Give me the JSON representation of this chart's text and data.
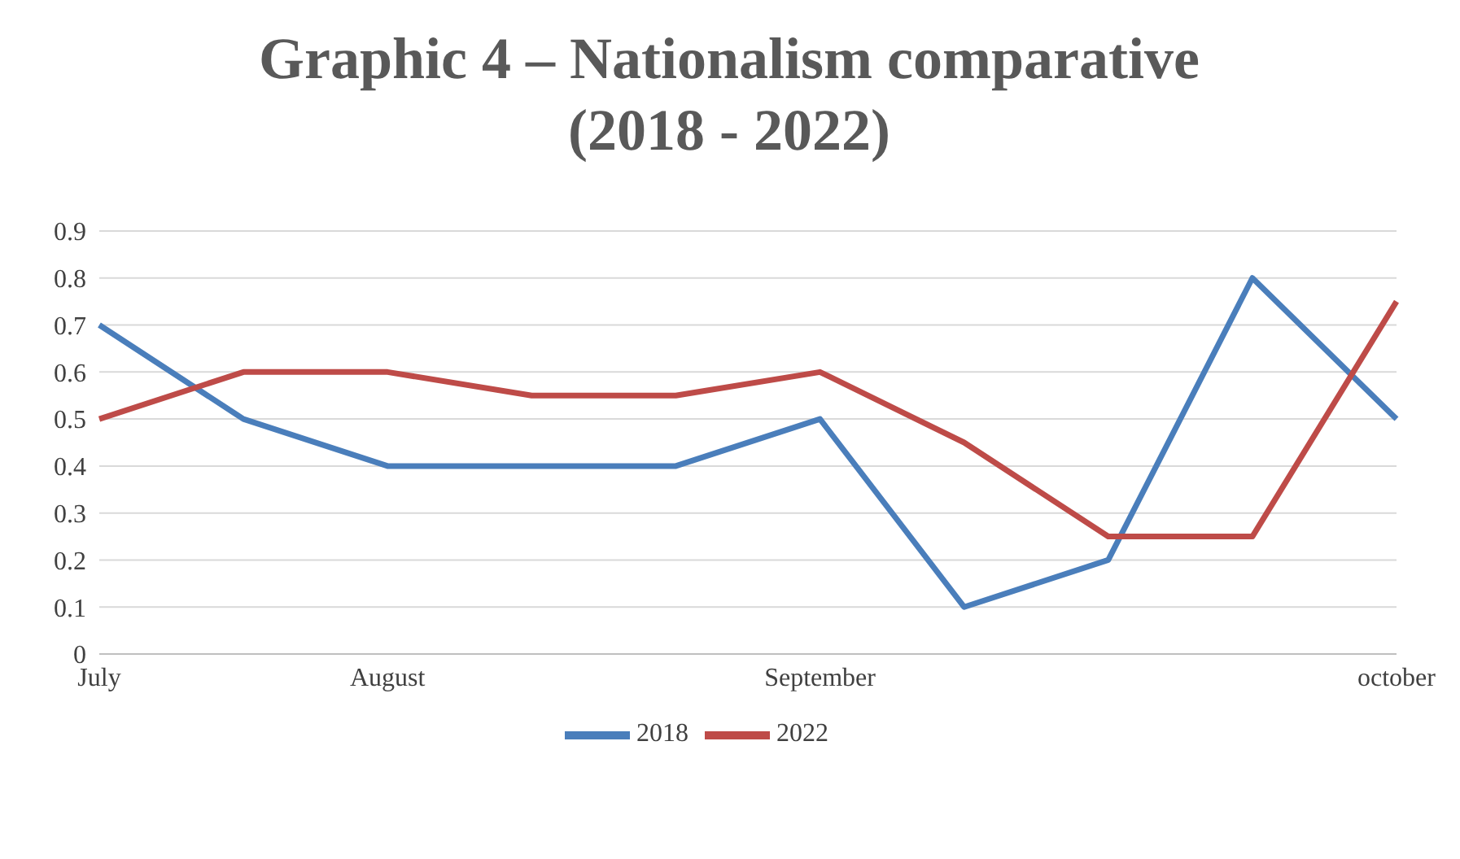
{
  "chart_data": {
    "type": "line",
    "title": "Graphic 4 – Nationalism comparative (2018 - 2022)",
    "categories": [
      "July",
      null,
      "August",
      null,
      null,
      "September",
      null,
      null,
      null,
      "october"
    ],
    "series": [
      {
        "name": "2018",
        "color": "#4a7ebb",
        "values": [
          0.7,
          0.5,
          0.4,
          0.4,
          0.4,
          0.5,
          0.1,
          0.2,
          0.8,
          0.5
        ]
      },
      {
        "name": "2022",
        "color": "#be4b48",
        "values": [
          0.5,
          0.6,
          0.6,
          0.55,
          0.55,
          0.6,
          0.45,
          0.25,
          0.25,
          0.75
        ]
      }
    ],
    "ylim": [
      0,
      0.9
    ],
    "yticks": [
      0,
      0.1,
      0.2,
      0.3,
      0.4,
      0.5,
      0.6,
      0.7,
      0.8,
      0.9
    ],
    "grid": "y",
    "legend": "bottom",
    "marker": "none",
    "line_style": "solid"
  }
}
